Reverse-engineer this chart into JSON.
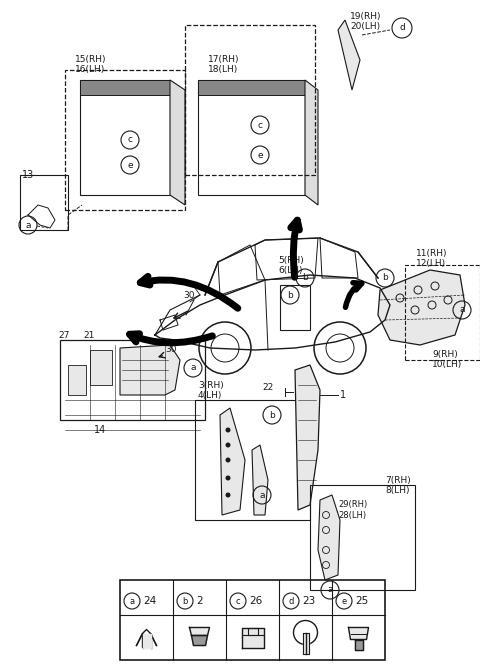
{
  "bg_color": "#ffffff",
  "line_color": "#1a1a1a",
  "gray_fill": "#cccccc",
  "light_gray": "#e8e8e8",
  "legend_items": [
    {
      "symbol": "a",
      "num": "24"
    },
    {
      "symbol": "b",
      "num": "2"
    },
    {
      "symbol": "c",
      "num": "26"
    },
    {
      "symbol": "d",
      "num": "23"
    },
    {
      "symbol": "e",
      "num": "25"
    }
  ],
  "fig_w": 4.8,
  "fig_h": 6.72,
  "dpi": 100
}
